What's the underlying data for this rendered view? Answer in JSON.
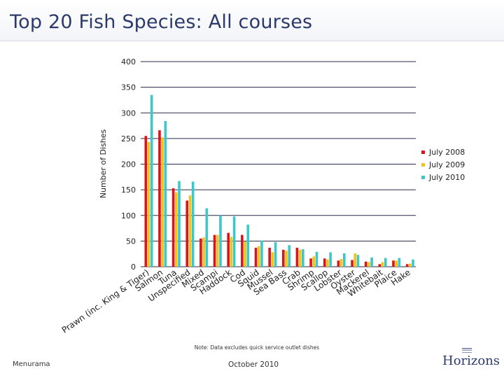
{
  "header": {
    "title": "Top 20 Fish Species: All courses"
  },
  "footer": {
    "left": "Menurama",
    "center": "October 2010",
    "logo": "Horizons"
  },
  "note": "Note: Data excludes quick service outlet dishes",
  "colors": {
    "July 2008": "#d9141b",
    "July 2009": "#f2c318",
    "July 2010": "#3ec6c8",
    "title": "#2b3a6b"
  },
  "chart_data": {
    "type": "bar",
    "title": "",
    "xlabel": "",
    "ylabel": "Number of Dishes",
    "ylim": [
      0,
      400
    ],
    "yticks": [
      0,
      50,
      100,
      150,
      200,
      250,
      300,
      350,
      400
    ],
    "grid": true,
    "legend_position": "right",
    "categories": [
      "Prawn (inc. King & Tiger)",
      "Salmon",
      "Tuna",
      "Unspecified",
      "Mixed",
      "Scampi",
      "Haddock",
      "Cod",
      "Squid",
      "Mussel",
      "Sea Bass",
      "Crab",
      "Shrimp",
      "Scallop",
      "Lobster",
      "Oyster",
      "Mackerel",
      "Whitebait",
      "Plaice",
      "Hake"
    ],
    "series": [
      {
        "name": "July 2008",
        "values": [
          255,
          266,
          153,
          129,
          55,
          62,
          66,
          62,
          37,
          37,
          33,
          37,
          16,
          16,
          12,
          13,
          10,
          5,
          12,
          5
        ]
      },
      {
        "name": "July 2009",
        "values": [
          243,
          252,
          145,
          139,
          57,
          62,
          58,
          49,
          40,
          28,
          31,
          33,
          20,
          14,
          15,
          26,
          9,
          9,
          12,
          6
        ]
      },
      {
        "name": "July 2010",
        "values": [
          335,
          284,
          167,
          166,
          114,
          100,
          98,
          82,
          51,
          48,
          42,
          34,
          29,
          28,
          26,
          23,
          18,
          17,
          17,
          14
        ]
      }
    ]
  }
}
